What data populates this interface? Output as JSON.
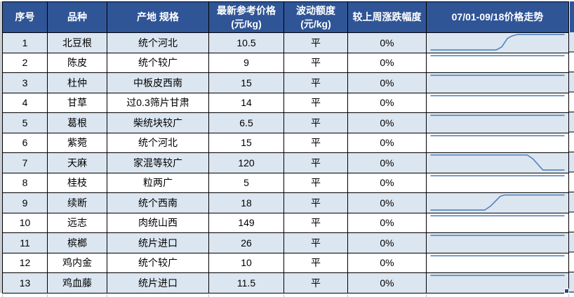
{
  "table": {
    "headers": {
      "index": "序号",
      "variety": "品种",
      "origin_spec": "产地 规格",
      "price_line1": "最新参考价格",
      "price_line2": "(元/kg)",
      "fluct_line1": "波动额度",
      "fluct_line2": "(元/kg)",
      "weekly_change": "较上周涨跌幅度",
      "trend": "07/01-09/18价格走势"
    },
    "rows": [
      {
        "index": "1",
        "variety": "北豆根",
        "origin_spec": "统个河北",
        "price": "10.5",
        "fluctuation": "平",
        "weekly_change": "0%",
        "trend": [
          [
            0.03,
            0.88
          ],
          [
            0.49,
            0.88
          ],
          [
            0.53,
            0.72
          ],
          [
            0.57,
            0.28
          ],
          [
            0.6,
            0.16
          ],
          [
            0.64,
            0.08
          ],
          [
            0.97,
            0.08
          ]
        ]
      },
      {
        "index": "2",
        "variety": "陈皮",
        "origin_spec": "统个较广",
        "price": "9",
        "fluctuation": "平",
        "weekly_change": "0%",
        "trend": [
          [
            0.03,
            0.12
          ],
          [
            0.97,
            0.12
          ]
        ]
      },
      {
        "index": "3",
        "variety": "杜仲",
        "origin_spec": "中板皮西南",
        "price": "15",
        "fluctuation": "平",
        "weekly_change": "0%",
        "trend": [
          [
            0.03,
            0.12
          ],
          [
            0.97,
            0.12
          ]
        ]
      },
      {
        "index": "4",
        "variety": "甘草",
        "origin_spec": "过0.3筛片甘肃",
        "price": "14",
        "fluctuation": "平",
        "weekly_change": "0%",
        "trend": [
          [
            0.03,
            0.12
          ],
          [
            0.97,
            0.12
          ]
        ]
      },
      {
        "index": "5",
        "variety": "葛根",
        "origin_spec": "柴统块较广",
        "price": "6.5",
        "fluctuation": "平",
        "weekly_change": "0%",
        "trend": [
          [
            0.03,
            0.12
          ],
          [
            0.97,
            0.12
          ]
        ]
      },
      {
        "index": "6",
        "variety": "紫菀",
        "origin_spec": "统个河北",
        "price": "15",
        "fluctuation": "平",
        "weekly_change": "0%",
        "trend": [
          [
            0.03,
            0.12
          ],
          [
            0.97,
            0.12
          ]
        ]
      },
      {
        "index": "7",
        "variety": "天麻",
        "origin_spec": "家混等较广",
        "price": "120",
        "fluctuation": "平",
        "weekly_change": "0%",
        "trend": [
          [
            0.03,
            0.1
          ],
          [
            0.71,
            0.1
          ],
          [
            0.75,
            0.3
          ],
          [
            0.82,
            0.88
          ],
          [
            0.97,
            0.88
          ]
        ]
      },
      {
        "index": "8",
        "variety": "桂枝",
        "origin_spec": "粒两广",
        "price": "5",
        "fluctuation": "平",
        "weekly_change": "0%",
        "trend": [
          [
            0.03,
            0.12
          ],
          [
            0.97,
            0.12
          ]
        ]
      },
      {
        "index": "9",
        "variety": "续断",
        "origin_spec": "统个西南",
        "price": "18",
        "fluctuation": "平",
        "weekly_change": "0%",
        "trend": [
          [
            0.03,
            0.88
          ],
          [
            0.41,
            0.88
          ],
          [
            0.45,
            0.68
          ],
          [
            0.52,
            0.16
          ],
          [
            0.55,
            0.1
          ],
          [
            0.97,
            0.1
          ]
        ]
      },
      {
        "index": "10",
        "variety": "远志",
        "origin_spec": "肉统山西",
        "price": "149",
        "fluctuation": "平",
        "weekly_change": "0%",
        "trend": [
          [
            0.03,
            0.12
          ],
          [
            0.97,
            0.12
          ]
        ]
      },
      {
        "index": "11",
        "variety": "槟榔",
        "origin_spec": "统片进口",
        "price": "26",
        "fluctuation": "平",
        "weekly_change": "0%",
        "trend": [
          [
            0.03,
            0.12
          ],
          [
            0.97,
            0.12
          ]
        ]
      },
      {
        "index": "12",
        "variety": "鸡内金",
        "origin_spec": "统个较广",
        "price": "10",
        "fluctuation": "平",
        "weekly_change": "0%",
        "trend": [
          [
            0.03,
            0.12
          ],
          [
            0.97,
            0.12
          ]
        ]
      },
      {
        "index": "13",
        "variety": "鸡血藤",
        "origin_spec": "统片进口",
        "price": "11.5",
        "fluctuation": "平",
        "weekly_change": "0%",
        "trend": [
          [
            0.03,
            0.12
          ],
          [
            0.97,
            0.12
          ]
        ]
      }
    ]
  },
  "colors": {
    "header_bg": "#2F5597",
    "header_text": "#FFFFFF",
    "row_alt_bg": "#DCE6F1",
    "row_bg": "#FFFFFF",
    "border": "#000000",
    "sparkline": "#4F81BD",
    "fill_handle": "#24477F"
  }
}
